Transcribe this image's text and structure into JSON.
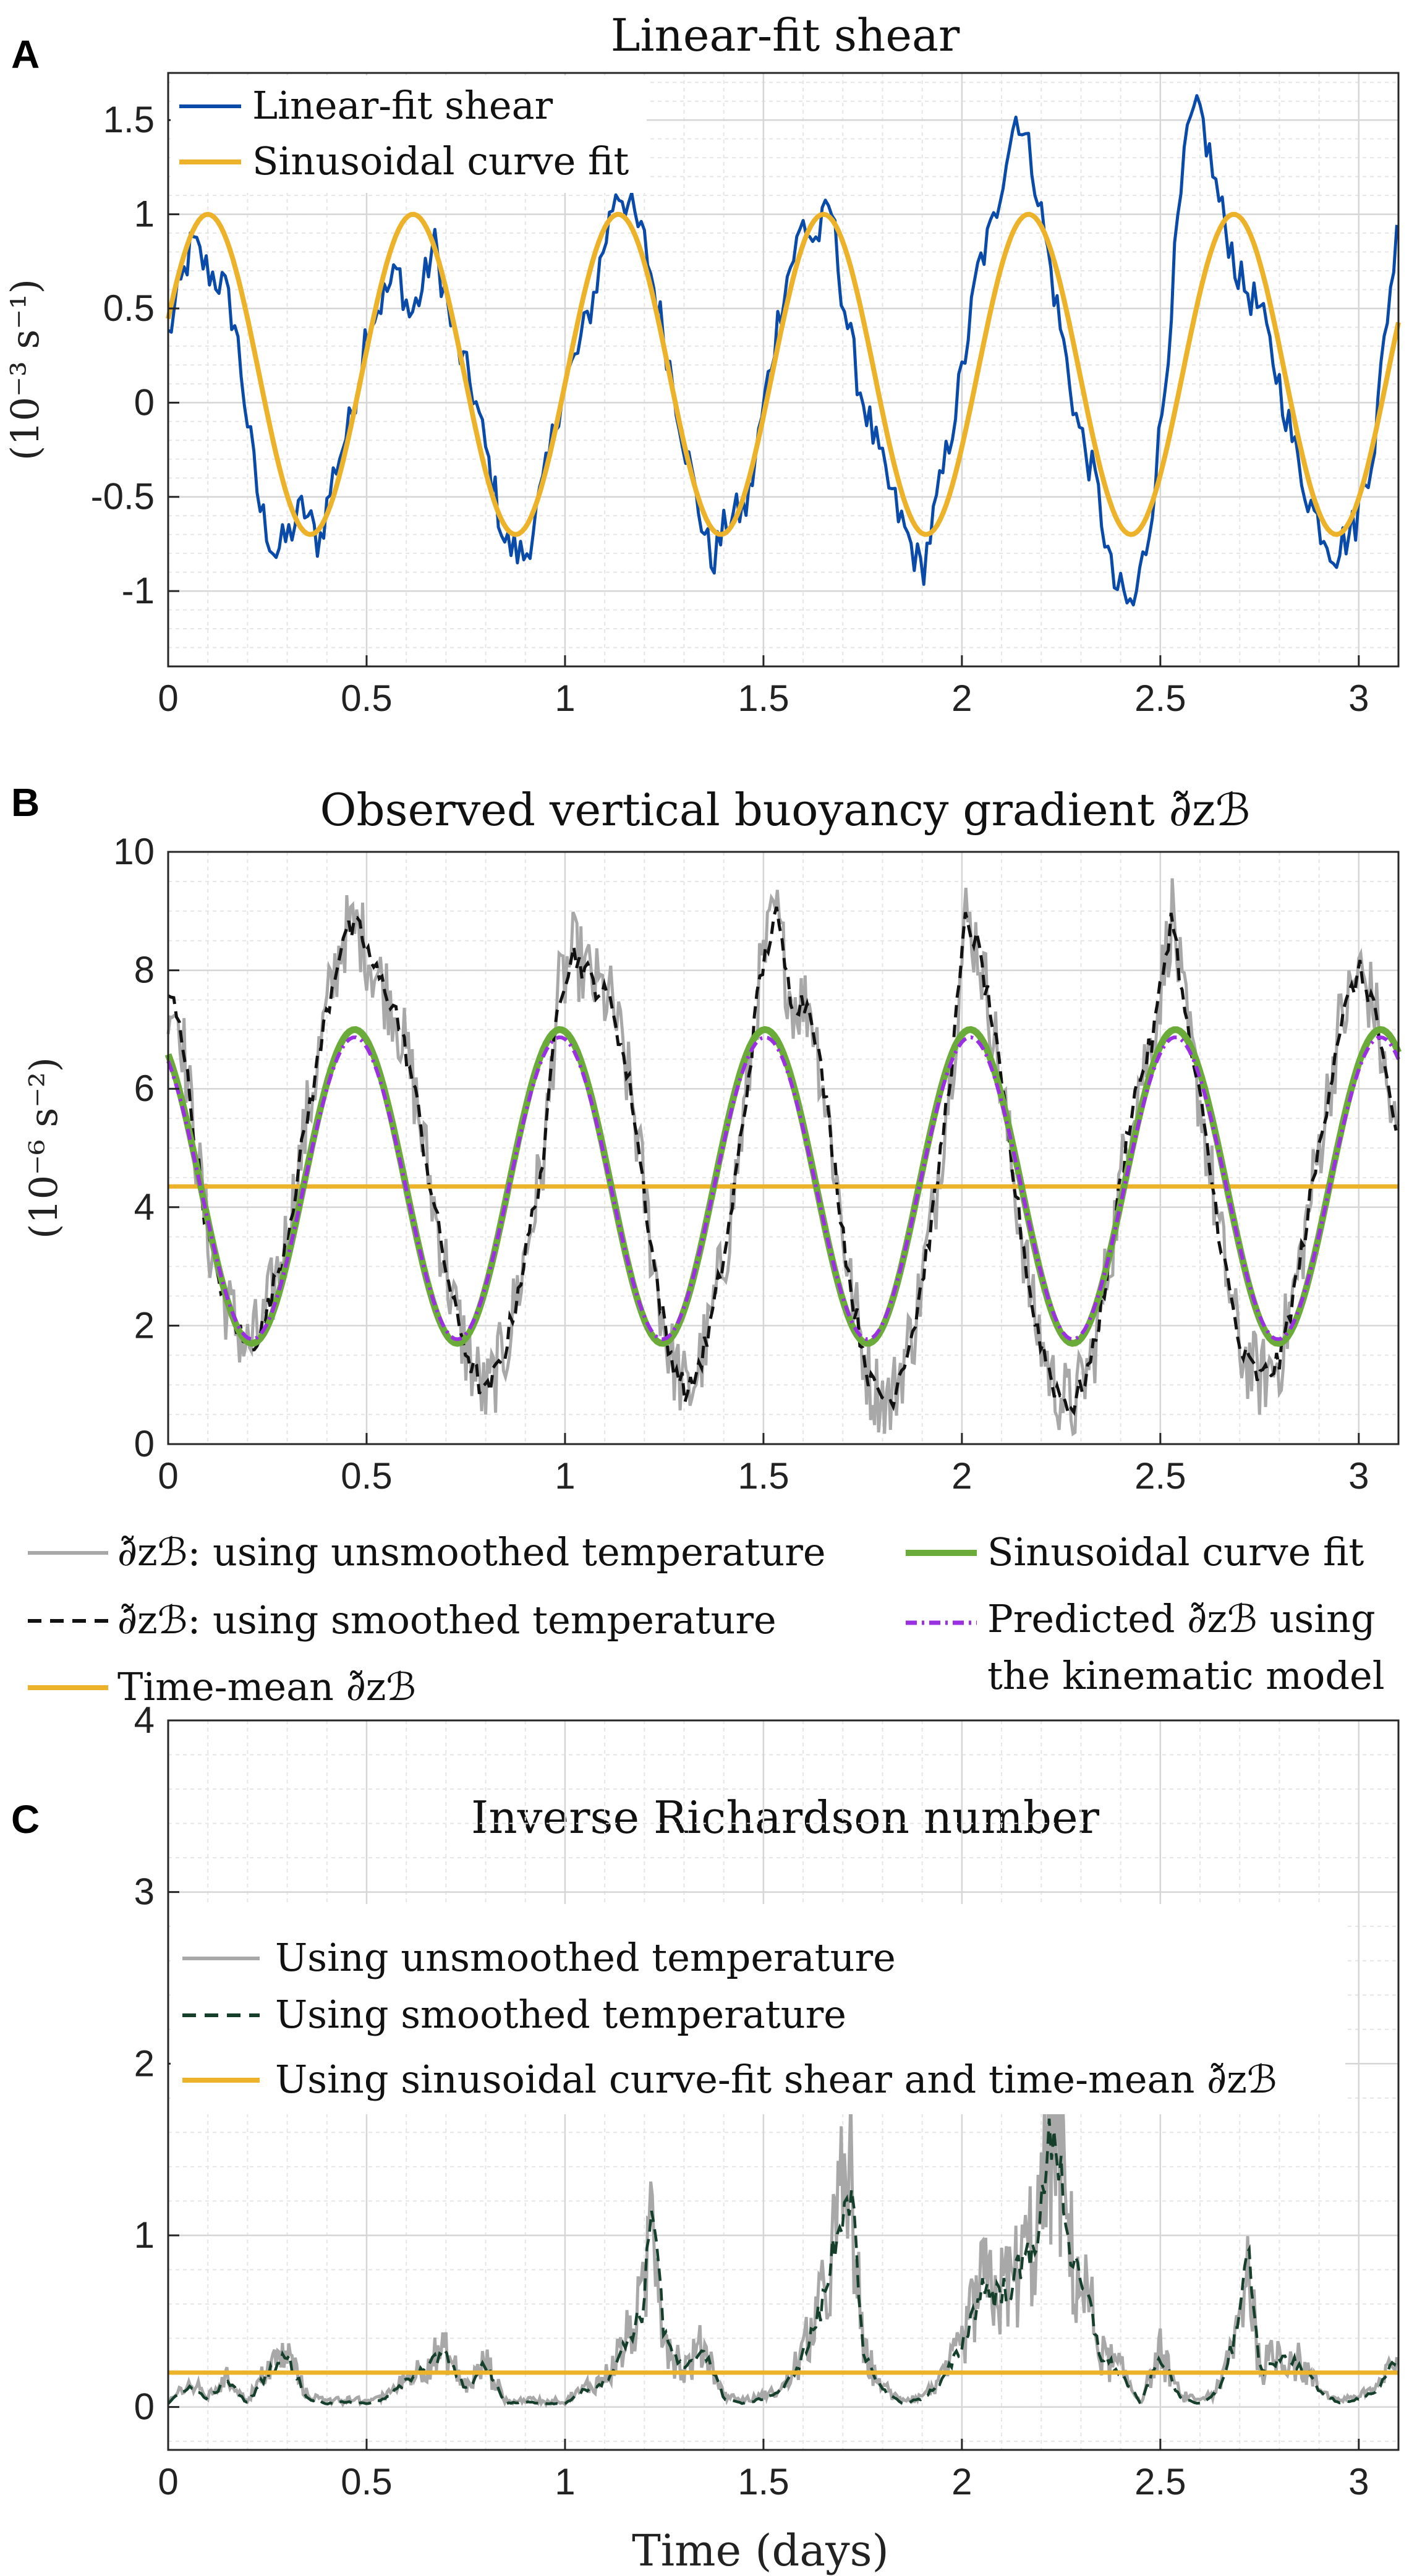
{
  "colors": {
    "shear": "#0a4aa8",
    "fit_yellow": "#ecb22a",
    "fit_green": "#6bab3a",
    "gray": "#a8a8a8",
    "black": "#111111",
    "purple": "#9b30e3",
    "darkgreen": "#153e2b"
  },
  "chart_data": [
    {
      "panel": "A",
      "type": "line",
      "title": "Linear-fit shear",
      "ylabel": "(10⁻³ s⁻¹)",
      "xlabel": "",
      "xlim": [
        0,
        3.1
      ],
      "ylim": [
        -1.4,
        1.75
      ],
      "xticks": [
        "0",
        "0.5",
        "1",
        "1.5",
        "2",
        "2.5",
        "3"
      ],
      "yticks": [
        "-1",
        "-0.5",
        "0",
        "0.5",
        "1",
        "1.5"
      ],
      "legend": [
        "Linear-fit shear",
        "Sinusoidal curve fit"
      ],
      "series": [
        {
          "name": "Linear-fit shear",
          "x": [
            0,
            0.03,
            0.06,
            0.1,
            0.14,
            0.17,
            0.2,
            0.23,
            0.27,
            0.3,
            0.34,
            0.38,
            0.42,
            0.46,
            0.5,
            0.54,
            0.58,
            0.61,
            0.64,
            0.67,
            0.72,
            0.77,
            0.81,
            0.85,
            0.9,
            0.95,
            0.99,
            1.03,
            1.07,
            1.1,
            1.13,
            1.16,
            1.2,
            1.25,
            1.3,
            1.33,
            1.37,
            1.41,
            1.46,
            1.51,
            1.55,
            1.6,
            1.63,
            1.67,
            1.7,
            1.74,
            1.8,
            1.85,
            1.9,
            1.95,
            2.0,
            2.04,
            2.08,
            2.11,
            2.14,
            2.18,
            2.24,
            2.29,
            2.34,
            2.38,
            2.43,
            2.47,
            2.51,
            2.54,
            2.57,
            2.6,
            2.65,
            2.7,
            2.75,
            2.8,
            2.85,
            2.89,
            2.94,
            2.99,
            3.04,
            3.07,
            3.1
          ],
          "values": [
            0.35,
            0.6,
            0.85,
            0.7,
            0.62,
            0.4,
            -0.1,
            -0.55,
            -0.8,
            -0.72,
            -0.55,
            -0.75,
            -0.35,
            -0.1,
            0.4,
            0.55,
            0.7,
            0.45,
            0.6,
            0.85,
            0.35,
            0.05,
            -0.35,
            -0.75,
            -0.82,
            -0.4,
            0.05,
            0.25,
            0.55,
            0.85,
            1.15,
            1.05,
            0.85,
            0.35,
            -0.2,
            -0.5,
            -0.85,
            -0.62,
            -0.55,
            0.1,
            0.6,
            0.95,
            0.85,
            1.05,
            0.55,
            0.1,
            -0.35,
            -0.65,
            -0.9,
            -0.4,
            0.15,
            0.7,
            0.95,
            1.3,
            1.55,
            1.25,
            0.5,
            -0.1,
            -0.45,
            -0.95,
            -1.1,
            -0.7,
            0.05,
            0.85,
            1.45,
            1.55,
            1.05,
            0.65,
            0.5,
            0.1,
            -0.35,
            -0.6,
            -0.8,
            -0.65,
            -0.2,
            0.45,
            0.95
          ]
        },
        {
          "name": "Sinusoidal curve fit",
          "function": "0.15 + 0.85*cos(2*pi*(t-0.1)/0.517)",
          "amplitude": 0.85,
          "mean": 0.15,
          "period": 0.517,
          "phase_peak": 0.1
        }
      ]
    },
    {
      "panel": "B",
      "type": "line",
      "title": "Observed vertical buoyancy gradient ∂̃zℬ",
      "ylabel": "(10⁻⁶ s⁻²)",
      "xlabel": "",
      "xlim": [
        0,
        3.1
      ],
      "ylim": [
        0,
        10
      ],
      "xticks": [
        "0",
        "0.5",
        "1",
        "1.5",
        "2",
        "2.5",
        "3"
      ],
      "yticks": [
        "0",
        "2",
        "4",
        "6",
        "8",
        "10"
      ],
      "legend": [
        "∂̃zℬ: using unsmoothed temperature",
        "∂̃zℬ: using smoothed temperature",
        "Time-mean ∂̃zℬ",
        "Sinusoidal curve fit",
        "Predicted ∂̃zℬ using",
        "the kinematic model"
      ],
      "series": [
        {
          "name": "using smoothed temperature",
          "x": [
            0,
            0.03,
            0.06,
            0.1,
            0.15,
            0.2,
            0.24,
            0.3,
            0.35,
            0.4,
            0.44,
            0.48,
            0.52,
            0.57,
            0.62,
            0.67,
            0.72,
            0.76,
            0.8,
            0.85,
            0.9,
            0.95,
            0.98,
            1.02,
            1.07,
            1.12,
            1.17,
            1.22,
            1.26,
            1.31,
            1.36,
            1.41,
            1.45,
            1.49,
            1.53,
            1.57,
            1.62,
            1.67,
            1.72,
            1.77,
            1.82,
            1.88,
            1.93,
            1.98,
            2.01,
            2.04,
            2.08,
            2.13,
            2.18,
            2.23,
            2.28,
            2.33,
            2.38,
            2.43,
            2.48,
            2.53,
            2.56,
            2.6,
            2.65,
            2.7,
            2.75,
            2.8,
            2.85,
            2.9,
            2.95,
            3.0,
            3.04,
            3.07,
            3.1
          ],
          "values": [
            7.6,
            7.2,
            5.5,
            3.5,
            2.3,
            1.6,
            2.0,
            3.5,
            5.5,
            7.3,
            8.6,
            8.7,
            8.0,
            7.4,
            6.0,
            4.0,
            2.3,
            1.4,
            0.8,
            1.6,
            3.2,
            5.0,
            7.5,
            8.3,
            7.8,
            7.4,
            5.8,
            3.2,
            1.6,
            0.8,
            1.8,
            3.5,
            5.5,
            7.8,
            9.0,
            7.5,
            7.4,
            5.2,
            2.6,
            1.0,
            0.7,
            2.0,
            4.0,
            6.8,
            8.9,
            8.4,
            7.0,
            4.5,
            2.2,
            1.0,
            0.6,
            1.5,
            3.5,
            5.8,
            6.8,
            9.0,
            7.3,
            5.8,
            3.5,
            1.6,
            1.1,
            1.4,
            3.0,
            5.0,
            7.0,
            8.0,
            7.4,
            6.0,
            5.0
          ]
        },
        {
          "name": "Time-mean",
          "values": [
            4.35
          ]
        },
        {
          "name": "Sinusoidal curve fit",
          "function": "4.35 + 2.65*cos(2*pi*(t-0.47)/0.517)",
          "mean": 4.35,
          "amplitude": 2.65,
          "period": 0.517,
          "phase_peak": 0.47
        },
        {
          "name": "Predicted using the kinematic model",
          "function": "4.32 + 2.55*cos(2*pi*(t-0.47)/0.517)",
          "mean": 4.32,
          "amplitude": 2.55,
          "period": 0.517,
          "phase_peak": 0.47
        }
      ]
    },
    {
      "panel": "C",
      "type": "line",
      "title": "Inverse Richardson number",
      "ylabel": "",
      "xlabel": "Time (days)",
      "xlim": [
        0,
        3.1
      ],
      "ylim": [
        -0.25,
        4
      ],
      "xticks": [
        "0",
        "0.5",
        "1",
        "1.5",
        "2",
        "2.5",
        "3"
      ],
      "yticks": [
        "0",
        "1",
        "2",
        "3",
        "4"
      ],
      "legend": [
        "Using unsmoothed temperature",
        "Using smoothed temperature",
        "Using sinusoidal curve-fit shear and time-mean ∂̃zℬ"
      ],
      "series": [
        {
          "name": "Using smoothed temperature",
          "x": [
            0,
            0.05,
            0.1,
            0.15,
            0.2,
            0.25,
            0.3,
            0.35,
            0.4,
            0.45,
            0.5,
            0.55,
            0.6,
            0.65,
            0.7,
            0.75,
            0.8,
            0.85,
            0.9,
            0.95,
            1.0,
            1.05,
            1.1,
            1.15,
            1.2,
            1.22,
            1.25,
            1.3,
            1.35,
            1.4,
            1.45,
            1.5,
            1.55,
            1.6,
            1.65,
            1.7,
            1.72,
            1.75,
            1.8,
            1.85,
            1.9,
            1.95,
            2.0,
            2.05,
            2.1,
            2.15,
            2.2,
            2.23,
            2.25,
            2.28,
            2.32,
            2.35,
            2.4,
            2.45,
            2.5,
            2.55,
            2.6,
            2.65,
            2.7,
            2.72,
            2.75,
            2.8,
            2.85,
            2.9,
            2.95,
            3.0,
            3.05,
            3.1
          ],
          "values": [
            0.02,
            0.12,
            0.05,
            0.15,
            0.02,
            0.2,
            0.3,
            0.05,
            0.02,
            0.03,
            0.02,
            0.05,
            0.15,
            0.25,
            0.3,
            0.1,
            0.25,
            0.02,
            0.03,
            0.02,
            0.02,
            0.1,
            0.15,
            0.35,
            0.6,
            1.3,
            0.4,
            0.2,
            0.35,
            0.05,
            0.02,
            0.05,
            0.1,
            0.3,
            0.6,
            1.2,
            1.3,
            0.3,
            0.1,
            0.02,
            0.05,
            0.15,
            0.35,
            0.7,
            0.65,
            0.8,
            1.1,
            1.7,
            1.35,
            0.8,
            0.6,
            0.3,
            0.2,
            0.02,
            0.3,
            0.05,
            0.02,
            0.1,
            0.5,
            0.9,
            0.2,
            0.3,
            0.25,
            0.1,
            0.02,
            0.05,
            0.1,
            0.3
          ]
        },
        {
          "name": "Using sinusoidal curve-fit shear and time-mean",
          "values": [
            0.2
          ]
        }
      ]
    }
  ]
}
